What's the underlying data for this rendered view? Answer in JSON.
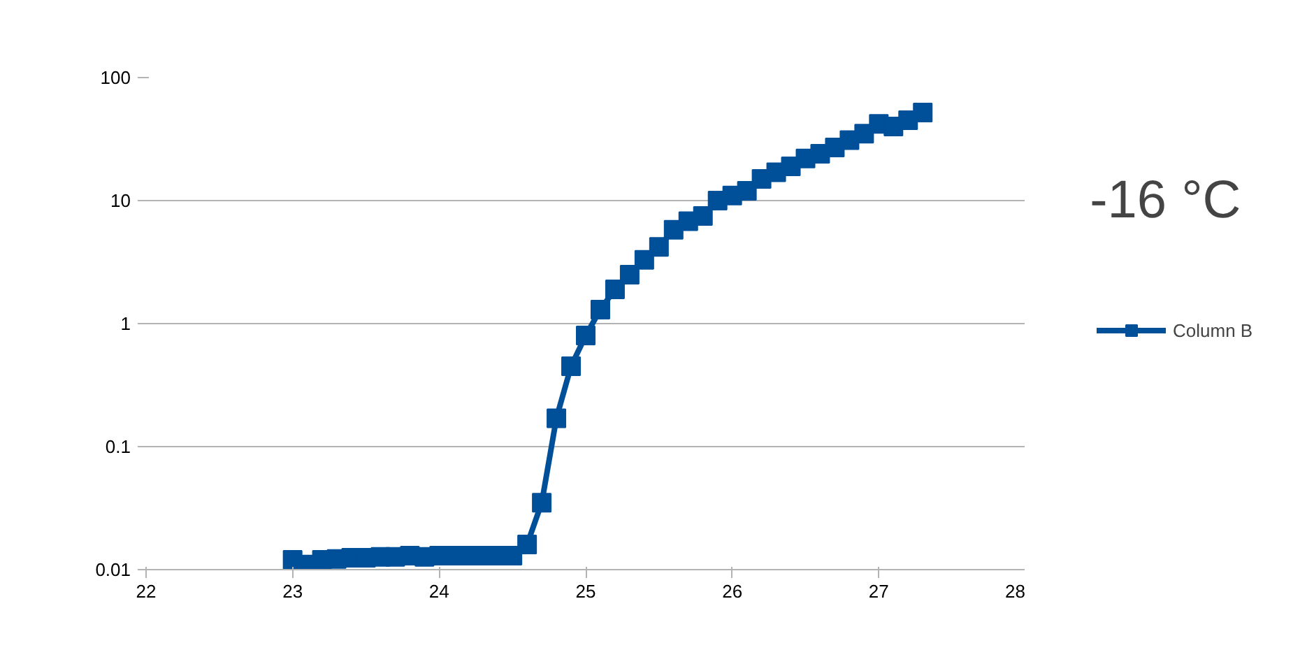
{
  "chart_data": {
    "type": "line",
    "log": "y",
    "marker": "square",
    "line_style": "solid",
    "grid": "y",
    "legend": "right",
    "annotations": [
      "-16 °C"
    ],
    "xlim": [
      22,
      28
    ],
    "xticks": [
      22,
      23,
      24,
      25,
      26,
      27,
      28
    ],
    "ylim": [
      0.01,
      100
    ],
    "yticks": [
      {
        "value": 0.01,
        "label": "0.01"
      },
      {
        "value": 0.1,
        "label": "0.1"
      },
      1,
      10,
      100
    ],
    "series": [
      {
        "name": "Column B",
        "color": "#004f99",
        "x": [
          23.0,
          23.1,
          23.2,
          23.3,
          23.4,
          23.5,
          23.6,
          23.7,
          23.8,
          23.9,
          24.0,
          24.1,
          24.2,
          24.3,
          24.4,
          24.5,
          24.6,
          24.7,
          24.8,
          24.9,
          25.0,
          25.1,
          25.2,
          25.3,
          25.4,
          25.5,
          25.6,
          25.7,
          25.8,
          25.9,
          26.0,
          26.1,
          26.2,
          26.3,
          26.4,
          26.5,
          26.6,
          26.7,
          26.8,
          26.9,
          27.0,
          27.1,
          27.2,
          27.3
        ],
        "values": [
          0.012,
          0.011,
          0.012,
          0.0122,
          0.0125,
          0.0125,
          0.0127,
          0.0127,
          0.013,
          0.0127,
          0.013,
          0.013,
          0.013,
          0.013,
          0.013,
          0.013,
          0.016,
          0.035,
          0.17,
          0.45,
          0.8,
          1.3,
          1.9,
          2.5,
          3.3,
          4.2,
          5.8,
          6.8,
          7.5,
          10,
          11,
          12,
          15,
          17,
          19,
          22,
          24,
          27,
          31,
          35,
          42,
          40,
          45,
          52
        ]
      }
    ]
  }
}
